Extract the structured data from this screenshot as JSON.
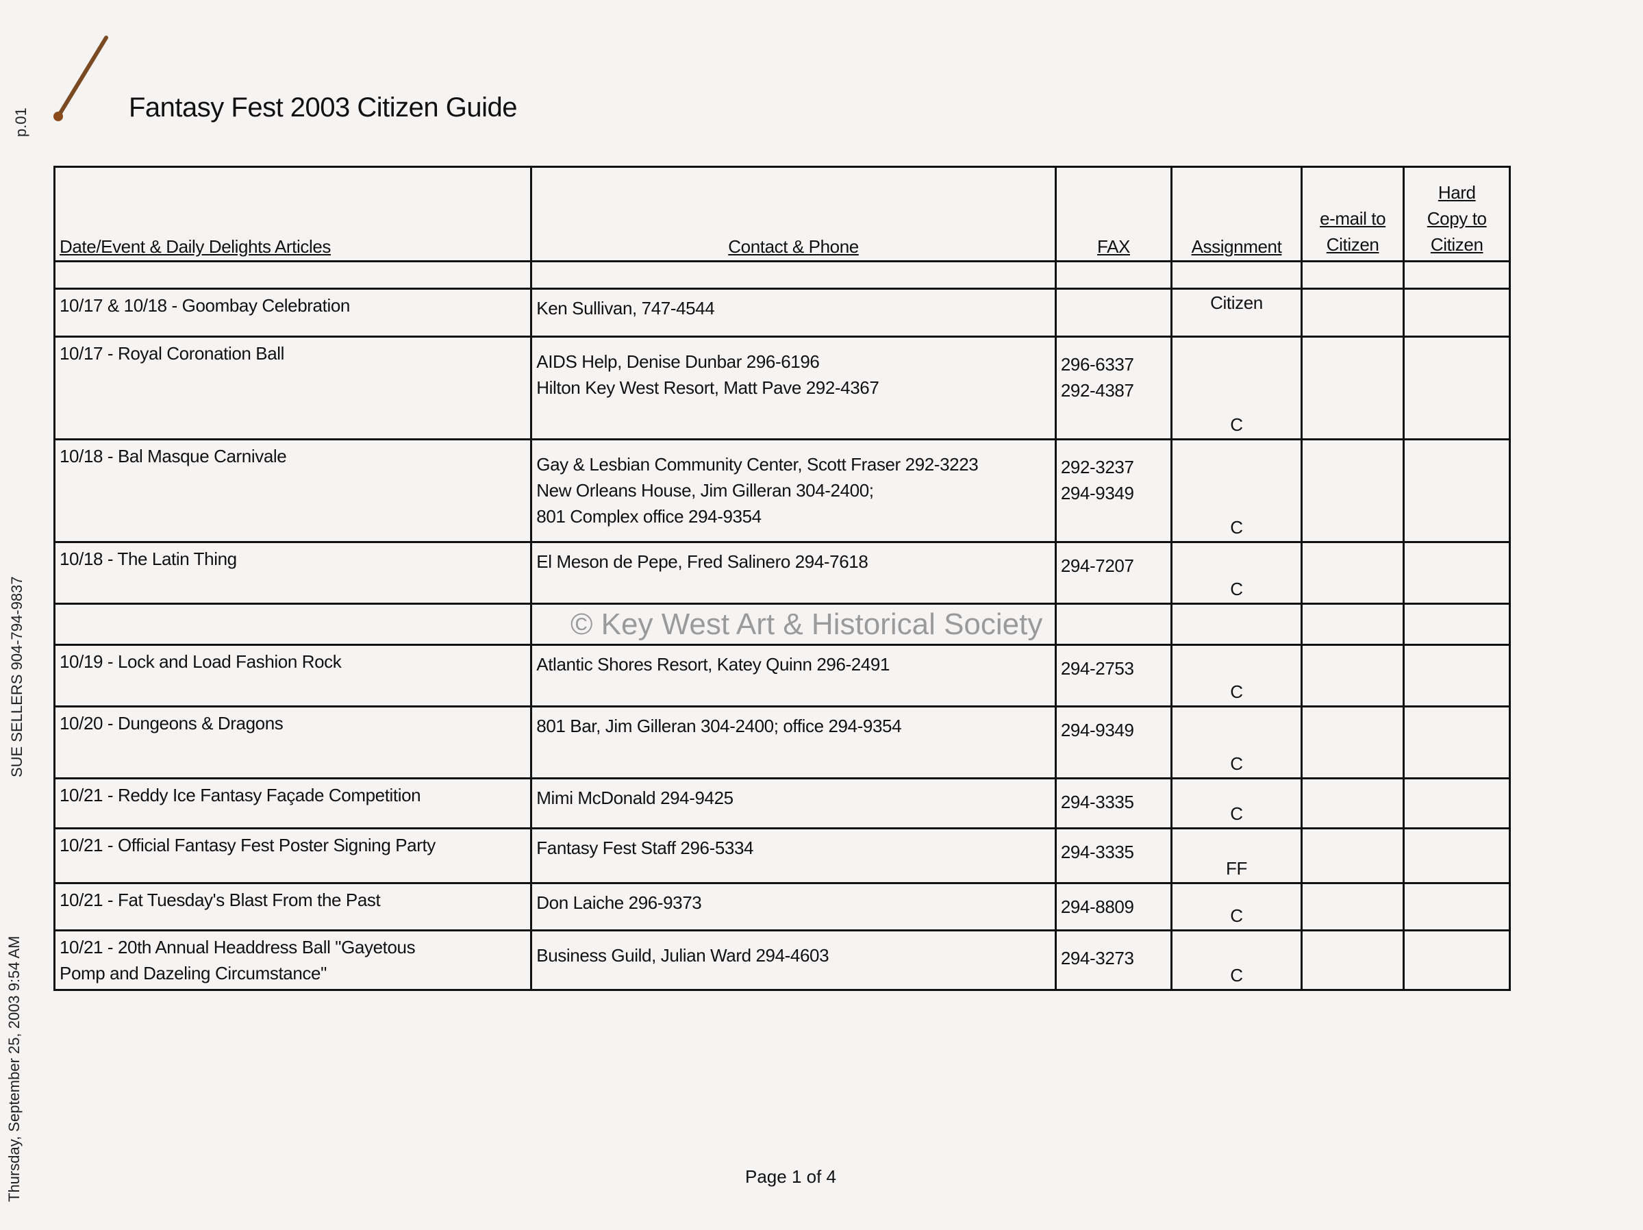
{
  "document": {
    "title": "Fantasy Fest 2003 Citizen Guide",
    "page_marker": "p.01",
    "fax_sender": "SUE SELLERS  904-794-9837",
    "fax_timestamp": "Thursday, September 25, 2003 9:54 AM",
    "watermark": "© Key West Art & Historical Society",
    "footer": "Page 1 of 4"
  },
  "table": {
    "headers": {
      "event": "Date/Event & Daily Delights Articles",
      "contact": "Contact & Phone",
      "fax": "FAX",
      "assignment": "Assignment",
      "email": [
        "e-mail to",
        "Citizen"
      ],
      "hardcopy": [
        "Hard",
        "Copy to",
        "Citizen"
      ]
    },
    "rows": [
      {
        "event": [
          "10/17 & 10/18 - Goombay Celebration"
        ],
        "contact": [
          "Ken Sullivan, 747-4544"
        ],
        "fax": [],
        "assignment": "Citizen"
      },
      {
        "event": [
          "10/17 - Royal Coronation Ball"
        ],
        "contact": [
          "AIDS Help, Denise Dunbar  296-6196",
          "Hilton Key West Resort, Matt Pave 292-4367"
        ],
        "fax": [
          "296-6337",
          "292-4387"
        ],
        "assignment": "C"
      },
      {
        "event": [
          "10/18 - Bal Masque Carnivale"
        ],
        "contact": [
          "Gay & Lesbian Community Center, Scott Fraser 292-3223",
          "New Orleans House, Jim Gilleran 304-2400;",
          "801 Complex office 294-9354"
        ],
        "fax": [
          "292-3237",
          "294-9349"
        ],
        "assignment": "C"
      },
      {
        "event": [
          "10/18 - The Latin Thing"
        ],
        "contact": [
          "El Meson de Pepe, Fred Salinero 294-7618"
        ],
        "fax": [
          "294-7207"
        ],
        "assignment": "C"
      },
      {
        "event": [
          "10/19 - Lock and Load Fashion Rock"
        ],
        "contact": [
          "Atlantic Shores Resort, Katey Quinn 296-2491"
        ],
        "fax": [
          "294-2753"
        ],
        "assignment": "C"
      },
      {
        "event": [
          "10/20 - Dungeons & Dragons"
        ],
        "contact": [
          "801 Bar, Jim Gilleran 304-2400; office 294-9354"
        ],
        "fax": [
          "294-9349"
        ],
        "assignment": "C"
      },
      {
        "event": [
          "10/21 - Reddy Ice Fantasy Façade Competition"
        ],
        "contact": [
          "Mimi McDonald  294-9425"
        ],
        "fax": [
          "294-3335"
        ],
        "assignment": "C"
      },
      {
        "event": [
          "10/21 - Official Fantasy Fest Poster Signing Party"
        ],
        "contact": [
          "Fantasy Fest Staff  296-5334"
        ],
        "fax": [
          "294-3335"
        ],
        "assignment": "FF"
      },
      {
        "event": [
          "10/21 - Fat Tuesday's Blast From the Past"
        ],
        "contact": [
          "Don Laiche  296-9373"
        ],
        "fax": [
          "294-8809"
        ],
        "assignment": "C"
      },
      {
        "event": [
          "10/21 - 20th Annual Headdress Ball \"Gayetous",
          "Pomp and Dazeling Circumstance\""
        ],
        "contact": [
          "",
          "Business Guild, Julian Ward 294-4603"
        ],
        "fax": [
          "",
          "294-3273"
        ],
        "assignment": "C"
      }
    ]
  }
}
